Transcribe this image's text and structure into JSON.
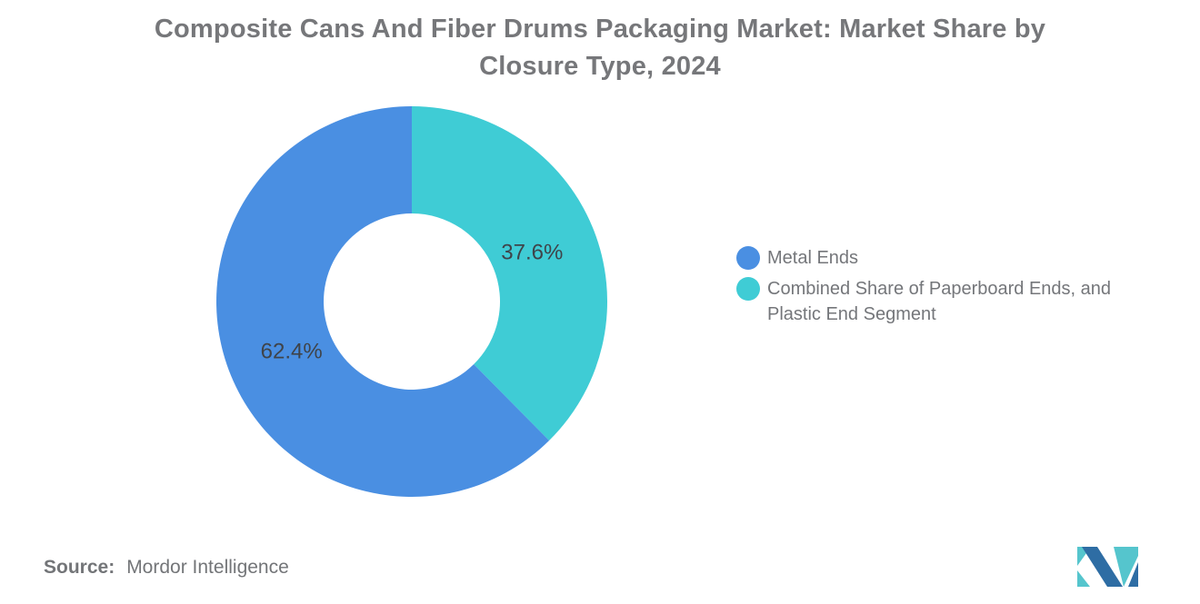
{
  "header": {
    "title": "Composite Cans And Fiber Drums Packaging Market: Market Share by Closure Type, 2024",
    "title_color": "#76777A"
  },
  "chart_data": {
    "type": "pie",
    "donut": true,
    "title": "Composite Cans And Fiber Drums Packaging Market: Market Share by Closure Type, 2024",
    "start_at_deg_from_top": 0,
    "direction": "clockwise",
    "inner_radius_ratio": 0.45,
    "data_label_color": "#3F444A",
    "slices_draw_order": [
      {
        "name": "Combined Share of Paperboard Ends, and Plastic End Segment",
        "value": 37.6,
        "data_label": "37.6%",
        "color": "#3FCCD5"
      },
      {
        "name": "Metal Ends",
        "value": 62.4,
        "data_label": "62.4%",
        "color": "#4A8FE2"
      }
    ]
  },
  "legend": {
    "position": "right",
    "text_color": "#74767A",
    "items": [
      {
        "color": "#4A8FE2",
        "lines": [
          "Metal Ends",
          ""
        ]
      },
      {
        "color": "#3FCCD5",
        "lines": [
          "Combined Share of Paperboard Ends, and",
          "Plastic End Segment"
        ]
      }
    ]
  },
  "footer": {
    "source_label": "Source:",
    "source_value": "Mordor Intelligence"
  },
  "branding": {
    "logo_name": "mordor-intelligence-logo",
    "logo_blue": "#2E6DA4",
    "logo_teal": "#55C5CD"
  }
}
